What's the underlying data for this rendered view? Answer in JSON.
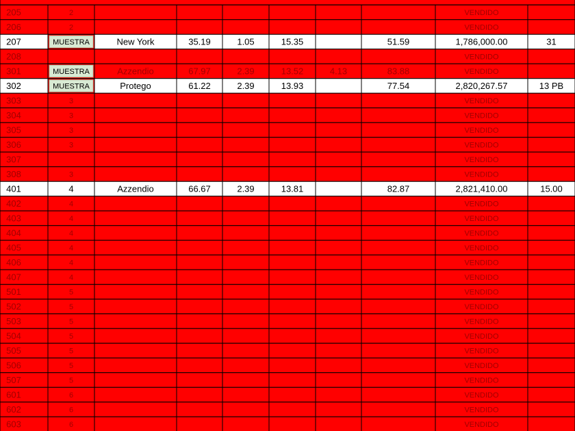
{
  "table": {
    "rows": [
      {
        "fill": "#ff0000",
        "cells": [
          "205",
          "2",
          null,
          null,
          null,
          null,
          null,
          null,
          "VENDIDO",
          null
        ]
      },
      {
        "fill": "#ff0000",
        "cells": [
          "206",
          "2",
          null,
          null,
          null,
          null,
          null,
          null,
          "VENDIDO",
          null
        ]
      },
      {
        "fill": "#ffffff",
        "cells": [
          "207",
          "MUESTRA",
          "New York",
          "35.19",
          "1.05",
          "15.35",
          null,
          "51.59",
          "1,786,000.00",
          "31"
        ]
      },
      {
        "fill": "#ff0000",
        "cells": [
          "208",
          null,
          null,
          null,
          null,
          null,
          null,
          null,
          "VENDIDO",
          null
        ]
      },
      {
        "fill": "#ff0000",
        "cells": [
          "301",
          "MUESTRA",
          "Azzendio",
          "67.97",
          "2.39",
          "13.52",
          "4.13",
          "83.88",
          "VENDIDO",
          null
        ]
      },
      {
        "fill": "#ffffff",
        "cells": [
          "302",
          "MUESTRA",
          "Protego",
          "61.22",
          "2.39",
          "13.93",
          null,
          "77.54",
          "2,820,267.57",
          "13 PB"
        ]
      },
      {
        "fill": "#ff0000",
        "cells": [
          "303",
          "3",
          null,
          null,
          null,
          null,
          null,
          null,
          "VENDIDO",
          null
        ]
      },
      {
        "fill": "#ff0000",
        "cells": [
          "304",
          "3",
          null,
          null,
          null,
          null,
          null,
          null,
          "VENDIDO",
          null
        ]
      },
      {
        "fill": "#ff0000",
        "cells": [
          "305",
          "3",
          null,
          null,
          null,
          null,
          null,
          null,
          "VENDIDO",
          null
        ]
      },
      {
        "fill": "#ff0000",
        "cells": [
          "306",
          "3",
          null,
          null,
          null,
          null,
          null,
          null,
          "VENDIDO",
          null
        ]
      },
      {
        "fill": "#ff0000",
        "cells": [
          "307",
          null,
          null,
          null,
          null,
          null,
          null,
          null,
          "VENDIDO",
          null
        ]
      },
      {
        "fill": "#ff0000",
        "cells": [
          "308",
          "3",
          null,
          null,
          null,
          null,
          null,
          null,
          "VENDIDO",
          null
        ]
      },
      {
        "fill": "#ffffff",
        "cells": [
          "401",
          "4",
          "Azzendio",
          "66.67",
          "2.39",
          "13.81",
          null,
          "82.87",
          "2,821,410.00",
          "15.00"
        ]
      },
      {
        "fill": "#ff0000",
        "cells": [
          "402",
          "4",
          null,
          null,
          null,
          null,
          null,
          null,
          "VENDIDO",
          null
        ]
      },
      {
        "fill": "#ff0000",
        "cells": [
          "403",
          "4",
          null,
          null,
          null,
          null,
          null,
          null,
          "VENDIDO",
          null
        ]
      },
      {
        "fill": "#ff0000",
        "cells": [
          "404",
          "4",
          null,
          null,
          null,
          null,
          null,
          null,
          "VENDIDO",
          null
        ]
      },
      {
        "fill": "#ff0000",
        "cells": [
          "405",
          "4",
          null,
          null,
          null,
          null,
          null,
          null,
          "VENDIDO",
          null
        ]
      },
      {
        "fill": "#ff0000",
        "cells": [
          "406",
          "4",
          null,
          null,
          null,
          null,
          null,
          null,
          "VENDIDO",
          null
        ]
      },
      {
        "fill": "#ff0000",
        "cells": [
          "407",
          "4",
          null,
          null,
          null,
          null,
          null,
          null,
          "VENDIDO",
          null
        ]
      },
      {
        "fill": "#ff0000",
        "cells": [
          "501",
          "5",
          null,
          null,
          null,
          null,
          null,
          null,
          "VENDIDO",
          null
        ]
      },
      {
        "fill": "#ff0000",
        "cells": [
          "502",
          "5",
          null,
          null,
          null,
          null,
          null,
          null,
          "VENDIDO",
          null
        ]
      },
      {
        "fill": "#ff0000",
        "cells": [
          "503",
          "5",
          null,
          null,
          null,
          null,
          null,
          null,
          "VENDIDO",
          null
        ]
      },
      {
        "fill": "#ff0000",
        "cells": [
          "504",
          "5",
          null,
          null,
          null,
          null,
          null,
          null,
          "VENDIDO",
          null
        ]
      },
      {
        "fill": "#ff0000",
        "cells": [
          "505",
          "5",
          null,
          null,
          null,
          null,
          null,
          null,
          "VENDIDO",
          null
        ]
      },
      {
        "fill": "#ff0000",
        "cells": [
          "506",
          "5",
          null,
          null,
          null,
          null,
          null,
          null,
          "VENDIDO",
          null
        ]
      },
      {
        "fill": "#ff0000",
        "cells": [
          "507",
          "5",
          null,
          null,
          null,
          null,
          null,
          null,
          "VENDIDO",
          null
        ]
      },
      {
        "fill": "#ff0000",
        "cells": [
          "601",
          "6",
          null,
          null,
          null,
          null,
          null,
          null,
          "VENDIDO",
          null
        ]
      },
      {
        "fill": "#ff0000",
        "cells": [
          "602",
          "6",
          null,
          null,
          null,
          null,
          null,
          null,
          "VENDIDO",
          null
        ]
      },
      {
        "fill": "#ff0000",
        "cells": [
          "603",
          "6",
          null,
          null,
          null,
          null,
          null,
          null,
          "VENDIDO",
          null
        ]
      }
    ]
  }
}
